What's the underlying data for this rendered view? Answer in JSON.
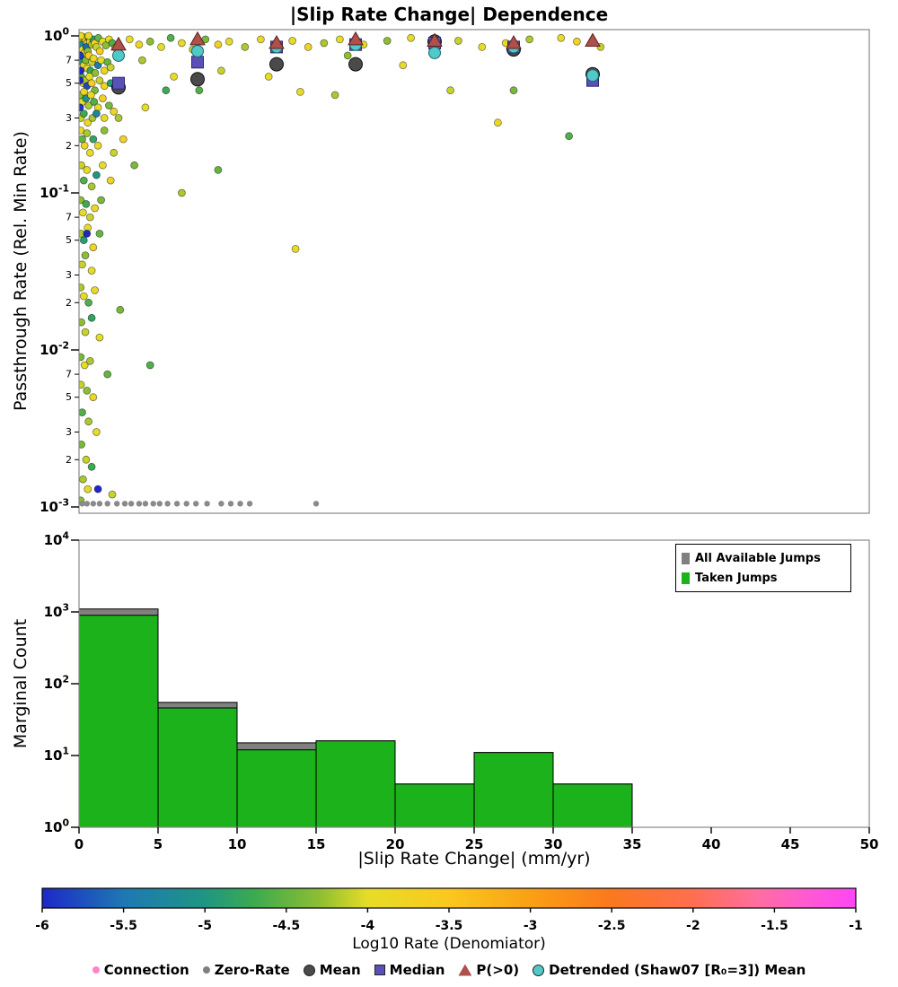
{
  "title": "|Slip Rate Change| Dependence",
  "chart_data": [
    {
      "type": "scatter",
      "title": "|Slip Rate Change| Dependence",
      "ylabel": "Passthrough Rate (Rel. Min Rate)",
      "xlim": [
        0,
        50
      ],
      "ylog_range": [
        -3,
        0
      ],
      "y_major_exponents": [
        0,
        -1,
        -2,
        -3
      ],
      "y_minor_labels": [
        7,
        5,
        3,
        2
      ],
      "marker_colors": {
        "mean": "#4a4a4a",
        "median": "#5b50b8",
        "p_gt0": "#b0504a",
        "detrended": "#52c8c8",
        "zero_rate": "#8a8a8a"
      },
      "points": [
        [
          0.08,
          0.97,
          -4.1
        ],
        [
          0.18,
          0.93,
          -3.8
        ],
        [
          0.3,
          0.98,
          -4.4
        ],
        [
          0.14,
          0.88,
          -5.2
        ],
        [
          0.4,
          0.95,
          -3.6
        ],
        [
          0.5,
          0.9,
          -4.1
        ],
        [
          0.62,
          0.97,
          -4.7
        ],
        [
          0.24,
          0.82,
          -4.0
        ],
        [
          0.36,
          0.78,
          -3.9
        ],
        [
          0.46,
          0.85,
          -5.6
        ],
        [
          0.55,
          0.8,
          -4.3
        ],
        [
          0.7,
          0.92,
          -3.7
        ],
        [
          0.82,
          0.88,
          -4.2
        ],
        [
          0.9,
          0.95,
          -4.9
        ],
        [
          1.0,
          0.9,
          -3.8
        ],
        [
          1.1,
          0.85,
          -4.1
        ],
        [
          1.22,
          0.97,
          -4.5
        ],
        [
          1.32,
          0.8,
          -3.6
        ],
        [
          1.5,
          0.92,
          -4.0
        ],
        [
          1.7,
          0.87,
          -4.3
        ],
        [
          1.9,
          0.95,
          -3.9
        ],
        [
          2.1,
          0.9,
          -4.6
        ],
        [
          2.3,
          0.84,
          -3.7
        ],
        [
          0.1,
          0.72,
          -4.2
        ],
        [
          0.2,
          0.68,
          -5.0
        ],
        [
          0.3,
          0.65,
          -3.8
        ],
        [
          0.42,
          0.7,
          -4.4
        ],
        [
          0.52,
          0.62,
          -4.0
        ],
        [
          0.62,
          0.75,
          -3.6
        ],
        [
          0.72,
          0.6,
          -4.8
        ],
        [
          0.82,
          0.68,
          -4.1
        ],
        [
          0.92,
          0.72,
          -3.9
        ],
        [
          1.02,
          0.58,
          -4.3
        ],
        [
          1.2,
          0.65,
          -5.4
        ],
        [
          1.4,
          0.7,
          -4.0
        ],
        [
          1.6,
          0.6,
          -3.8
        ],
        [
          1.8,
          0.68,
          -4.5
        ],
        [
          2.0,
          0.63,
          -4.1
        ],
        [
          0.14,
          0.55,
          -4.6
        ],
        [
          0.26,
          0.5,
          -3.9
        ],
        [
          0.36,
          0.52,
          -4.2
        ],
        [
          0.5,
          0.48,
          -5.8
        ],
        [
          0.66,
          0.55,
          -4.0
        ],
        [
          0.8,
          0.5,
          -3.7
        ],
        [
          1.0,
          0.45,
          -4.4
        ],
        [
          1.3,
          0.52,
          -4.1
        ],
        [
          1.6,
          0.48,
          -3.8
        ],
        [
          2.0,
          0.5,
          -4.9
        ],
        [
          0.1,
          0.42,
          -4.3
        ],
        [
          0.2,
          0.38,
          -4.0
        ],
        [
          0.32,
          0.44,
          -3.8
        ],
        [
          0.44,
          0.4,
          -5.1
        ],
        [
          0.6,
          0.36,
          -4.2
        ],
        [
          0.76,
          0.42,
          -3.9
        ],
        [
          0.95,
          0.38,
          -4.6
        ],
        [
          1.2,
          0.35,
          -4.0
        ],
        [
          1.5,
          0.4,
          -3.7
        ],
        [
          1.9,
          0.36,
          -4.4
        ],
        [
          0.12,
          0.3,
          -4.1
        ],
        [
          0.3,
          0.32,
          -4.7
        ],
        [
          0.55,
          0.28,
          -3.9
        ],
        [
          0.85,
          0.3,
          -4.2
        ],
        [
          1.1,
          0.32,
          -5.3
        ],
        [
          1.6,
          0.3,
          -4.0
        ],
        [
          2.2,
          0.33,
          -3.8
        ],
        [
          0.05,
          0.52,
          -6.0
        ],
        [
          0.08,
          0.75,
          -5.9
        ],
        [
          0.1,
          0.6,
          -6.0
        ],
        [
          0.06,
          0.35,
          -5.9
        ],
        [
          0.12,
          1.0,
          -4.0
        ],
        [
          0.6,
          1.0,
          -3.9
        ],
        [
          0.1,
          0.25,
          -4.0
        ],
        [
          0.2,
          0.22,
          -4.5
        ],
        [
          0.35,
          0.2,
          -3.8
        ],
        [
          0.5,
          0.24,
          -4.2
        ],
        [
          0.7,
          0.18,
          -4.0
        ],
        [
          0.9,
          0.22,
          -4.8
        ],
        [
          1.2,
          0.2,
          -3.9
        ],
        [
          1.6,
          0.25,
          -4.3
        ],
        [
          2.2,
          0.18,
          -4.1
        ],
        [
          2.8,
          0.22,
          -3.8
        ],
        [
          3.5,
          0.15,
          -4.4
        ],
        [
          0.15,
          0.15,
          -4.1
        ],
        [
          0.3,
          0.12,
          -4.6
        ],
        [
          0.5,
          0.14,
          -3.9
        ],
        [
          0.8,
          0.11,
          -4.2
        ],
        [
          1.1,
          0.13,
          -5.0
        ],
        [
          1.5,
          0.15,
          -4.0
        ],
        [
          2.0,
          0.12,
          -3.8
        ],
        [
          0.1,
          0.09,
          -4.3
        ],
        [
          0.25,
          0.075,
          -4.0
        ],
        [
          0.45,
          0.085,
          -4.7
        ],
        [
          0.7,
          0.07,
          -4.1
        ],
        [
          1.0,
          0.08,
          -3.9
        ],
        [
          1.4,
          0.09,
          -4.4
        ],
        [
          0.12,
          0.055,
          -4.2
        ],
        [
          0.3,
          0.05,
          -4.9
        ],
        [
          0.55,
          0.06,
          -4.0
        ],
        [
          0.9,
          0.045,
          -3.8
        ],
        [
          1.3,
          0.055,
          -4.5
        ],
        [
          0.5,
          0.055,
          -6.0
        ],
        [
          0.2,
          0.035,
          -4.1
        ],
        [
          0.4,
          0.04,
          -4.3
        ],
        [
          0.8,
          0.032,
          -4.0
        ],
        [
          2.5,
          0.3,
          -4.2
        ],
        [
          4.2,
          0.35,
          -4.0
        ],
        [
          6.5,
          0.1,
          -4.2
        ],
        [
          7.6,
          0.45,
          -4.6
        ],
        [
          8.8,
          0.14,
          -4.5
        ],
        [
          13.7,
          0.044,
          -4.0
        ],
        [
          0.1,
          0.025,
          -4.2
        ],
        [
          0.3,
          0.022,
          -4.0
        ],
        [
          0.6,
          0.02,
          -4.6
        ],
        [
          1.0,
          0.024,
          -3.9
        ],
        [
          0.15,
          0.015,
          -4.3
        ],
        [
          0.4,
          0.013,
          -4.1
        ],
        [
          0.8,
          0.016,
          -4.8
        ],
        [
          1.3,
          0.012,
          -4.0
        ],
        [
          0.1,
          0.009,
          -4.4
        ],
        [
          0.35,
          0.008,
          -4.0
        ],
        [
          0.7,
          0.0085,
          -4.2
        ],
        [
          1.8,
          0.007,
          -4.5
        ],
        [
          0.12,
          0.006,
          -4.1
        ],
        [
          0.5,
          0.0055,
          -4.3
        ],
        [
          0.9,
          0.005,
          -3.9
        ],
        [
          0.2,
          0.004,
          -4.6
        ],
        [
          0.6,
          0.0035,
          -4.2
        ],
        [
          1.1,
          0.003,
          -4.0
        ],
        [
          0.15,
          0.0025,
          -4.4
        ],
        [
          0.45,
          0.002,
          -4.1
        ],
        [
          0.8,
          0.0018,
          -4.7
        ],
        [
          0.25,
          0.0015,
          -4.2
        ],
        [
          0.55,
          0.0013,
          -4.0
        ],
        [
          1.2,
          0.0013,
          -6.0
        ],
        [
          0.1,
          0.0011,
          -4.3
        ],
        [
          2.6,
          0.018,
          -4.4
        ],
        [
          4.5,
          0.008,
          -4.6
        ],
        [
          2.1,
          0.0012,
          -4.1
        ],
        [
          3.2,
          0.95,
          -4.0
        ],
        [
          3.8,
          0.88,
          -3.8
        ],
        [
          4.5,
          0.92,
          -4.3
        ],
        [
          5.2,
          0.85,
          -4.0
        ],
        [
          5.8,
          0.97,
          -4.6
        ],
        [
          6.5,
          0.9,
          -3.9
        ],
        [
          7.2,
          0.82,
          -4.1
        ],
        [
          8.0,
          0.95,
          -4.4
        ],
        [
          8.8,
          0.88,
          -3.7
        ],
        [
          9.5,
          0.92,
          -4.0
        ],
        [
          10.5,
          0.85,
          -4.2
        ],
        [
          11.5,
          0.95,
          -3.9
        ],
        [
          12.5,
          0.88,
          -4.5
        ],
        [
          13.5,
          0.93,
          -4.0
        ],
        [
          14.5,
          0.85,
          -3.8
        ],
        [
          15.5,
          0.9,
          -4.2
        ],
        [
          16.5,
          0.95,
          -4.0
        ],
        [
          18.0,
          0.88,
          -3.9
        ],
        [
          19.5,
          0.93,
          -4.3
        ],
        [
          21.0,
          0.97,
          -4.0
        ],
        [
          22.5,
          0.9,
          -3.8
        ],
        [
          24.0,
          0.93,
          -4.1
        ],
        [
          25.5,
          0.85,
          -4.0
        ],
        [
          27.0,
          0.9,
          -3.9
        ],
        [
          28.5,
          0.95,
          -4.2
        ],
        [
          30.5,
          0.97,
          -4.0
        ],
        [
          31.5,
          0.92,
          -3.8
        ],
        [
          33.0,
          0.85,
          -4.1
        ],
        [
          4.0,
          0.7,
          -4.2
        ],
        [
          6.0,
          0.55,
          -4.0
        ],
        [
          5.5,
          0.45,
          -4.7
        ],
        [
          9.0,
          0.6,
          -4.1
        ],
        [
          12.0,
          0.55,
          -3.9
        ],
        [
          14.0,
          0.44,
          -4.0
        ],
        [
          16.2,
          0.42,
          -4.2
        ],
        [
          17.0,
          0.75,
          -4.3
        ],
        [
          20.5,
          0.65,
          -4.0
        ],
        [
          23.5,
          0.45,
          -4.1
        ],
        [
          26.5,
          0.28,
          -3.9
        ],
        [
          31.0,
          0.23,
          -4.6
        ],
        [
          27.5,
          0.45,
          -4.4
        ]
      ],
      "zero_rate_y": 0.00105,
      "zero_rate_x": [
        0.2,
        0.5,
        0.9,
        1.3,
        1.8,
        2.4,
        2.9,
        3.3,
        3.8,
        4.2,
        4.7,
        5.1,
        5.6,
        6.2,
        6.8,
        7.4,
        8.1,
        9.0,
        9.6,
        10.2,
        10.8,
        15.0
      ],
      "summary": {
        "bin_centers": [
          2.5,
          7.5,
          12.5,
          17.5,
          22.5,
          27.5,
          32.5
        ],
        "mean": [
          0.47,
          0.53,
          0.66,
          0.66,
          0.92,
          0.82,
          0.57
        ],
        "median": [
          0.5,
          0.68,
          0.85,
          0.88,
          0.9,
          0.85,
          0.52
        ],
        "p_gt0": [
          0.88,
          0.95,
          0.9,
          0.95,
          0.93,
          0.9,
          0.93
        ],
        "detrended_mean": [
          0.75,
          0.8,
          0.85,
          0.88,
          0.78,
          0.85,
          0.56
        ]
      }
    },
    {
      "type": "bar",
      "ylabel": "Marginal Count",
      "xlabel": "|Slip Rate Change| (mm/yr)",
      "bin_edges": [
        0,
        5,
        10,
        15,
        20,
        25,
        30,
        35
      ],
      "series": [
        {
          "name": "All Available Jumps",
          "color": "#808080",
          "values": [
            1100,
            55,
            15,
            16,
            4,
            11,
            4
          ]
        },
        {
          "name": "Taken Jumps",
          "color": "#1cb21c",
          "values": [
            900,
            46,
            12,
            16,
            4,
            11,
            4
          ]
        }
      ],
      "ylim_log": [
        0,
        4
      ],
      "y_major_exponents": [
        4,
        3,
        2,
        1,
        0
      ],
      "x_ticks": [
        0,
        5,
        10,
        15,
        20,
        25,
        30,
        35,
        40,
        45,
        50
      ]
    },
    {
      "type": "colorbar",
      "label": "Log10 Rate (Denomiator)",
      "range": [
        -6,
        -1
      ],
      "ticks": [
        -6,
        -5.5,
        -5,
        -4.5,
        -4,
        -3.5,
        -3,
        -2.5,
        -2,
        -1.5,
        -1
      ],
      "gradient": [
        {
          "v": -6.0,
          "c": "#1e28c8"
        },
        {
          "v": -5.5,
          "c": "#1e78b4"
        },
        {
          "v": -5.0,
          "c": "#1e9682"
        },
        {
          "v": -4.7,
          "c": "#3caa50"
        },
        {
          "v": -4.3,
          "c": "#8cbe32"
        },
        {
          "v": -4.0,
          "c": "#e6dc28"
        },
        {
          "v": -3.5,
          "c": "#fac81e"
        },
        {
          "v": -3.0,
          "c": "#faa014"
        },
        {
          "v": -2.5,
          "c": "#fa781e"
        },
        {
          "v": -2.0,
          "c": "#ff6e50"
        },
        {
          "v": -1.6,
          "c": "#ff6ea0"
        },
        {
          "v": -1.3,
          "c": "#ff5ad2"
        },
        {
          "v": -1.0,
          "c": "#ff46f5"
        }
      ]
    }
  ],
  "bottom_legend": [
    {
      "label": "Connection",
      "marker": "dot",
      "color": "#ff85c8"
    },
    {
      "label": "Zero-Rate",
      "marker": "dot",
      "color": "#808080"
    },
    {
      "label": "Mean",
      "marker": "circle",
      "color": "#4a4a4a"
    },
    {
      "label": "Median",
      "marker": "square",
      "color": "#5b50b8"
    },
    {
      "label": "P(>0)",
      "marker": "triangle",
      "color": "#b0504a"
    },
    {
      "label": "Detrended (Shaw07 [R₀=3]) Mean",
      "marker": "circle",
      "color": "#52c8c8"
    }
  ]
}
